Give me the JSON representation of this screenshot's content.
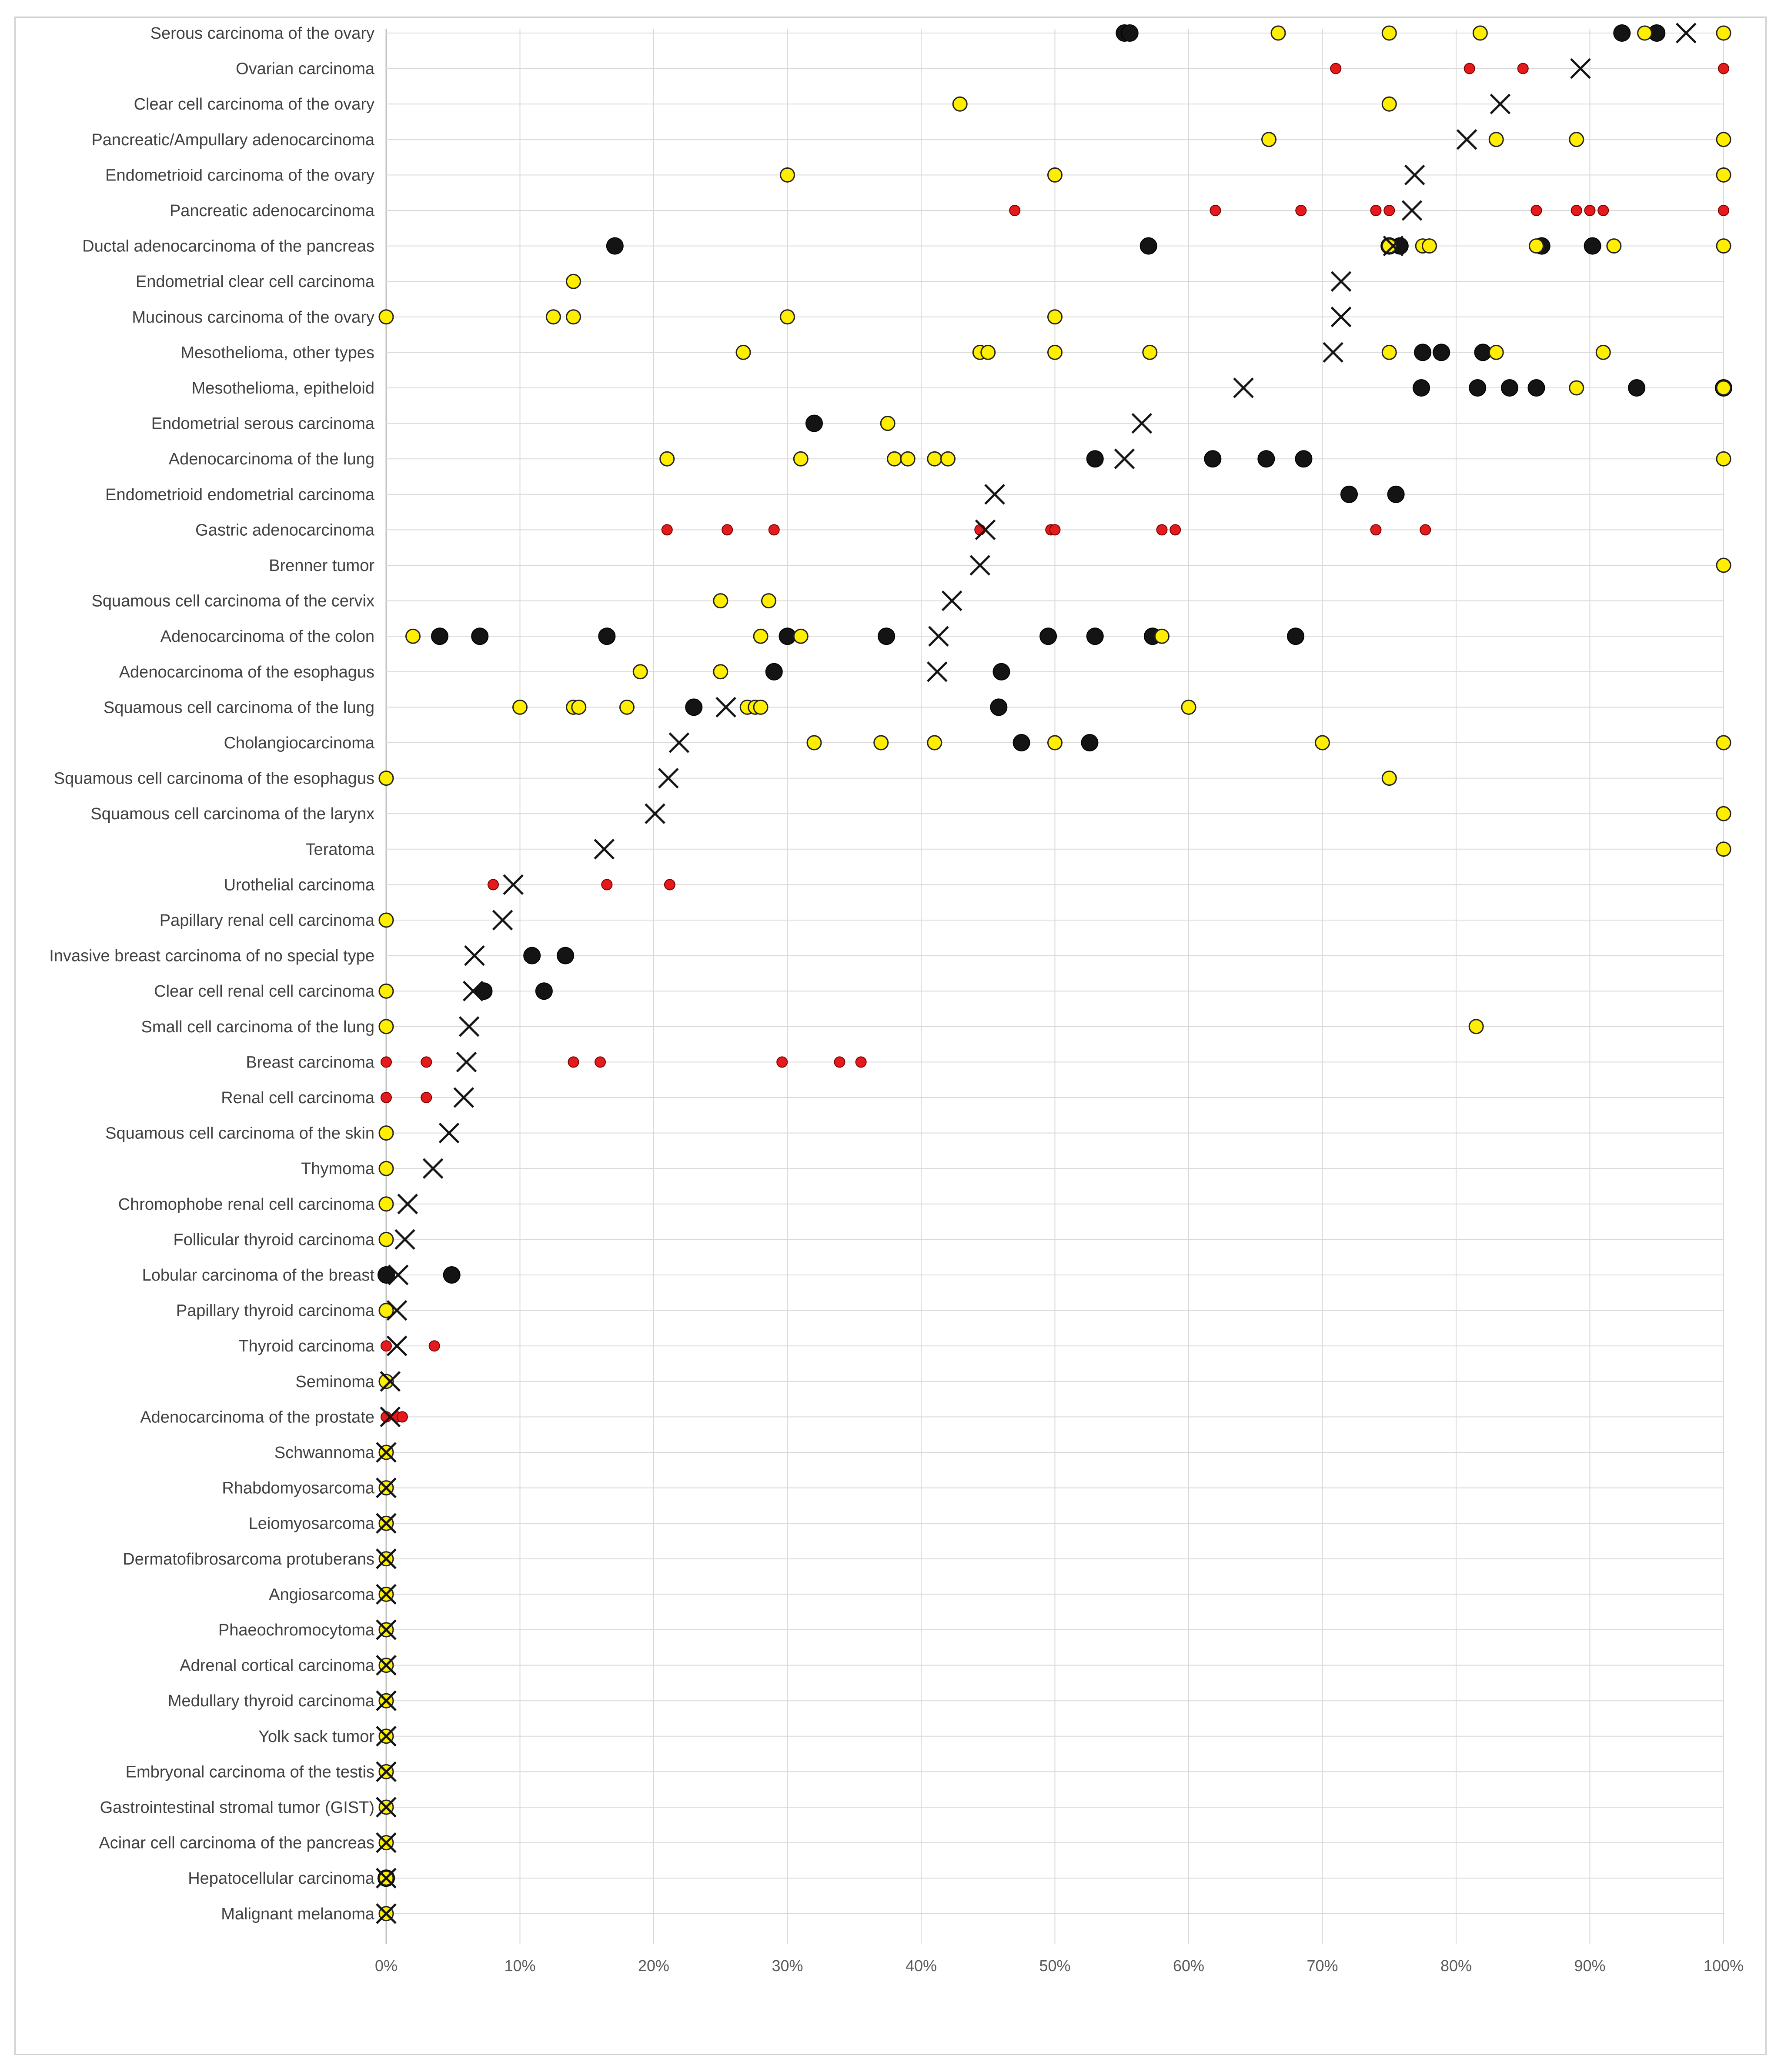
{
  "chart_data": {
    "type": "scatter",
    "orientation": "horizontal-categories",
    "title": "",
    "xlabel": "",
    "ylabel": "",
    "xlim": [
      0,
      100
    ],
    "x_ticks": [
      "0%",
      "10%",
      "20%",
      "30%",
      "40%",
      "50%",
      "60%",
      "70%",
      "80%",
      "90%",
      "100%"
    ],
    "grid": true,
    "colors": {
      "black": "#141414",
      "yellow": "#ffee00",
      "red": "#e41a1c",
      "cross": "#141414",
      "grid": "#d9d9d9"
    },
    "series_legend": {
      "black": "large black dot",
      "yellow": "yellow dot",
      "red": "small red dot",
      "cross": "X marker"
    },
    "rows": [
      {
        "label": "Serous carcinoma of the ovary",
        "black": [
          55.2,
          55.6,
          92.4,
          95.0
        ],
        "yellow": [
          66.7,
          75.0,
          81.8,
          94.1,
          100
        ],
        "red": [],
        "x": 97.2
      },
      {
        "label": "Ovarian carcinoma",
        "black": [],
        "yellow": [],
        "red": [
          71.0,
          81.0,
          85.0,
          100
        ],
        "x": 89.3
      },
      {
        "label": "Clear cell carcinoma of the ovary",
        "black": [],
        "yellow": [
          42.9,
          75.0
        ],
        "red": [],
        "x": 83.3
      },
      {
        "label": "Pancreatic/Ampullary adenocarcinoma",
        "black": [],
        "yellow": [
          66.0,
          83.0,
          89.0,
          100
        ],
        "red": [],
        "x": 80.8
      },
      {
        "label": "Endometrioid carcinoma of the ovary",
        "black": [],
        "yellow": [
          30.0,
          50.0,
          100
        ],
        "red": [],
        "x": 76.9
      },
      {
        "label": "Pancreatic adenocarcinoma",
        "black": [],
        "yellow": [],
        "red": [
          47.0,
          62.0,
          68.4,
          74.0,
          75.0,
          86.0,
          89.0,
          90.0,
          91.0,
          100
        ],
        "x": 76.7
      },
      {
        "label": "Ductal adenocarcinoma of the pancreas",
        "black": [
          17.1,
          57.0,
          75.0,
          75.8,
          86.4,
          90.2
        ],
        "yellow": [
          75.0,
          77.5,
          78.0,
          86.0,
          91.8,
          100
        ],
        "red": [],
        "x": 75.3
      },
      {
        "label": "Endometrial clear cell carcinoma",
        "black": [],
        "yellow": [
          14.0
        ],
        "red": [],
        "x": 71.4
      },
      {
        "label": "Mucinous carcinoma of the ovary",
        "black": [],
        "yellow": [
          0,
          12.5,
          14.0,
          30.0,
          50.0
        ],
        "red": [],
        "x": 71.4
      },
      {
        "label": "Mesothelioma, other types",
        "black": [
          77.5,
          78.9,
          82.0
        ],
        "yellow": [
          26.7,
          44.4,
          45.0,
          50.0,
          57.1,
          75.0,
          83.0,
          91.0
        ],
        "red": [],
        "x": 70.8
      },
      {
        "label": "Mesothelioma, epitheloid",
        "black": [
          77.4,
          81.6,
          84.0,
          86.0,
          93.5,
          100
        ],
        "yellow": [
          89.0,
          100
        ],
        "red": [],
        "x": 64.1
      },
      {
        "label": "Endometrial serous carcinoma",
        "black": [
          32.0
        ],
        "yellow": [
          37.5
        ],
        "red": [],
        "x": 56.5
      },
      {
        "label": "Adenocarcinoma of the lung",
        "black": [
          53.0,
          61.8,
          65.8,
          68.6
        ],
        "yellow": [
          21.0,
          31.0,
          38.0,
          39.0,
          41.0,
          42.0,
          100
        ],
        "red": [],
        "x": 55.2
      },
      {
        "label": "Endometrioid endometrial carcinoma",
        "black": [
          72.0,
          75.5
        ],
        "yellow": [],
        "red": [],
        "x": 45.5
      },
      {
        "label": "Gastric adenocarcinoma",
        "black": [],
        "yellow": [],
        "red": [
          21.0,
          25.5,
          29.0,
          44.4,
          49.7,
          50.0,
          58.0,
          59.0,
          74.0,
          77.7
        ],
        "x": 44.8
      },
      {
        "label": "Brenner tumor",
        "black": [],
        "yellow": [
          100
        ],
        "red": [],
        "x": 44.4
      },
      {
        "label": "Squamous cell carcinoma of the cervix",
        "black": [],
        "yellow": [
          25.0,
          28.6
        ],
        "red": [],
        "x": 42.3
      },
      {
        "label": "Adenocarcinoma of the colon",
        "black": [
          4.0,
          7.0,
          16.5,
          30.0,
          37.4,
          49.5,
          53.0,
          57.3,
          68.0
        ],
        "yellow": [
          2.0,
          28.0,
          31.0,
          58.0
        ],
        "red": [],
        "x": 41.3
      },
      {
        "label": "Adenocarcinoma of the esophagus",
        "black": [
          29.0,
          46.0
        ],
        "yellow": [
          19.0,
          25.0
        ],
        "red": [],
        "x": 41.2
      },
      {
        "label": "Squamous cell carcinoma of the lung",
        "black": [
          23.0,
          45.8
        ],
        "yellow": [
          10.0,
          14.0,
          14.4,
          18.0,
          27.0,
          27.6,
          28.0,
          60.0
        ],
        "red": [],
        "x": 25.4
      },
      {
        "label": "Cholangiocarcinoma",
        "black": [
          47.5,
          52.6
        ],
        "yellow": [
          32.0,
          37.0,
          41.0,
          50.0,
          70.0,
          100
        ],
        "red": [],
        "x": 21.9
      },
      {
        "label": "Squamous cell carcinoma of the esophagus",
        "black": [],
        "yellow": [
          0,
          75.0
        ],
        "red": [],
        "x": 21.1
      },
      {
        "label": "Squamous cell carcinoma of the larynx",
        "black": [],
        "yellow": [
          100
        ],
        "red": [],
        "x": 20.1
      },
      {
        "label": "Teratoma",
        "black": [],
        "yellow": [
          100
        ],
        "red": [],
        "x": 16.3
      },
      {
        "label": "Urothelial carcinoma",
        "black": [],
        "yellow": [],
        "red": [
          8.0,
          16.5,
          21.2
        ],
        "x": 9.5
      },
      {
        "label": "Papillary renal cell carcinoma",
        "black": [],
        "yellow": [
          0
        ],
        "red": [],
        "x": 8.7
      },
      {
        "label": "Invasive breast carcinoma of no special type",
        "black": [
          10.9,
          13.4
        ],
        "yellow": [],
        "red": [],
        "x": 6.6
      },
      {
        "label": "Clear cell renal cell carcinoma",
        "black": [
          7.3,
          11.8
        ],
        "yellow": [
          0
        ],
        "red": [],
        "x": 6.5
      },
      {
        "label": "Small cell carcinoma of the lung",
        "black": [],
        "yellow": [
          0,
          81.5
        ],
        "red": [],
        "x": 6.2
      },
      {
        "label": "Breast carcinoma",
        "black": [],
        "yellow": [],
        "red": [
          0,
          3.0,
          14.0,
          16.0,
          29.6,
          33.9,
          35.5
        ],
        "x": 6.0
      },
      {
        "label": "Renal cell carcinoma",
        "black": [],
        "yellow": [],
        "red": [
          0,
          3.0
        ],
        "x": 5.8
      },
      {
        "label": "Squamous cell carcinoma of the skin",
        "black": [],
        "yellow": [
          0
        ],
        "red": [],
        "x": 4.7
      },
      {
        "label": "Thymoma",
        "black": [],
        "yellow": [
          0
        ],
        "red": [],
        "x": 3.5
      },
      {
        "label": "Chromophobe renal cell carcinoma",
        "black": [],
        "yellow": [
          0
        ],
        "red": [],
        "x": 1.6
      },
      {
        "label": "Follicular thyroid carcinoma",
        "black": [],
        "yellow": [
          0
        ],
        "red": [],
        "x": 1.4
      },
      {
        "label": "Lobular carcinoma of the breast",
        "black": [
          0,
          4.9
        ],
        "yellow": [],
        "red": [],
        "x": 0.9
      },
      {
        "label": "Papillary thyroid carcinoma",
        "black": [],
        "yellow": [
          0
        ],
        "red": [],
        "x": 0.8
      },
      {
        "label": "Thyroid carcinoma",
        "black": [],
        "yellow": [],
        "red": [
          0,
          3.6
        ],
        "x": 0.8
      },
      {
        "label": "Seminoma",
        "black": [],
        "yellow": [
          0
        ],
        "red": [],
        "x": 0.3
      },
      {
        "label": "Adenocarcinoma of the prostate",
        "black": [],
        "yellow": [],
        "red": [
          0,
          0.8,
          1.2
        ],
        "x": 0.3
      },
      {
        "label": "Schwannoma",
        "black": [],
        "yellow": [
          0
        ],
        "red": [],
        "x": 0
      },
      {
        "label": "Rhabdomyosarcoma",
        "black": [],
        "yellow": [
          0
        ],
        "red": [],
        "x": 0
      },
      {
        "label": "Leiomyosarcoma",
        "black": [],
        "yellow": [
          0
        ],
        "red": [],
        "x": 0
      },
      {
        "label": "Dermatofibrosarcoma protuberans",
        "black": [],
        "yellow": [
          0
        ],
        "red": [],
        "x": 0
      },
      {
        "label": "Angiosarcoma",
        "black": [],
        "yellow": [
          0
        ],
        "red": [],
        "x": 0
      },
      {
        "label": "Phaeochromocytoma",
        "black": [],
        "yellow": [
          0
        ],
        "red": [],
        "x": 0
      },
      {
        "label": "Adrenal cortical carcinoma",
        "black": [],
        "yellow": [
          0
        ],
        "red": [],
        "x": 0
      },
      {
        "label": "Medullary thyroid carcinoma",
        "black": [],
        "yellow": [
          0
        ],
        "red": [],
        "x": 0
      },
      {
        "label": "Yolk sack tumor",
        "black": [],
        "yellow": [
          0
        ],
        "red": [],
        "x": 0
      },
      {
        "label": "Embryonal carcinoma of the testis",
        "black": [],
        "yellow": [
          0
        ],
        "red": [],
        "x": 0
      },
      {
        "label": "Gastrointestinal stromal tumor (GIST)",
        "black": [],
        "yellow": [
          0
        ],
        "red": [],
        "x": 0
      },
      {
        "label": "Acinar cell carcinoma of the pancreas",
        "black": [],
        "yellow": [
          0
        ],
        "red": [],
        "x": 0
      },
      {
        "label": "Hepatocellular carcinoma",
        "black": [
          0
        ],
        "yellow": [
          0
        ],
        "red": [],
        "x": 0
      },
      {
        "label": "Malignant melanoma",
        "black": [],
        "yellow": [
          0
        ],
        "red": [],
        "x": 0
      }
    ]
  }
}
